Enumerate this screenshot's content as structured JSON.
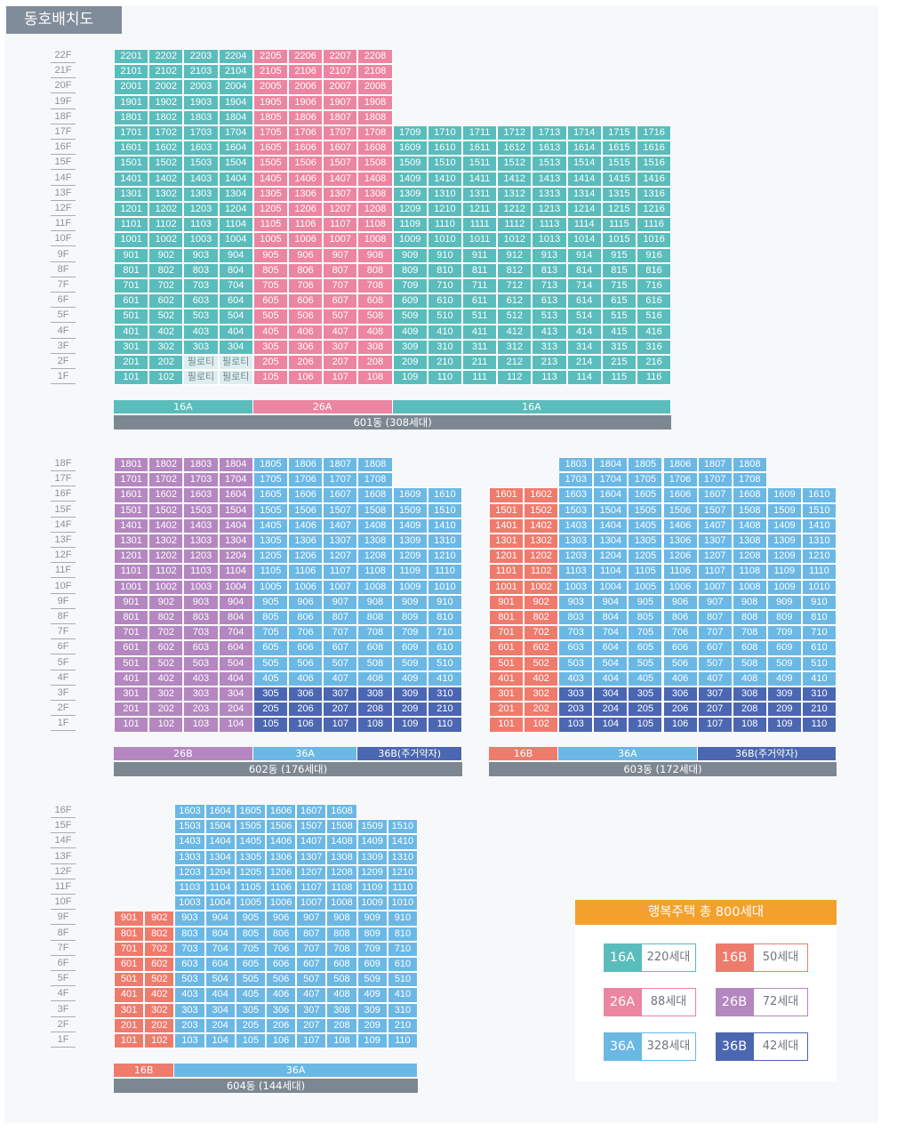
{
  "title": "동호배치도",
  "colors": {
    "16A": "#5bbcbc",
    "26A": "#ec85a1",
    "16B": "#ef7b6d",
    "26B": "#b487c0",
    "36A": "#6bb8e5",
    "36B": "#4b67b2"
  },
  "pilotis_label": "필로티",
  "pilotis_color": "#dceef0",
  "pilotis_text_color": "#7a8690",
  "buildings": [
    {
      "name": "601동 (308세대)",
      "floor_count": 22,
      "columns": [
        {
          "unit": "01",
          "max": 22,
          "type": "16A"
        },
        {
          "unit": "02",
          "max": 22,
          "type": "16A"
        },
        {
          "unit": "03",
          "max": 22,
          "type": "16A",
          "pilotis_floors": [
            1,
            2
          ]
        },
        {
          "unit": "04",
          "max": 22,
          "type": "16A",
          "pilotis_floors": [
            1,
            2
          ]
        },
        {
          "unit": "05",
          "max": 22,
          "type": "26A"
        },
        {
          "unit": "06",
          "max": 22,
          "type": "26A"
        },
        {
          "unit": "07",
          "max": 22,
          "type": "26A"
        },
        {
          "unit": "08",
          "max": 22,
          "type": "26A"
        },
        {
          "unit": "09",
          "max": 17,
          "type": "16A"
        },
        {
          "unit": "10",
          "max": 17,
          "type": "16A"
        },
        {
          "unit": "11",
          "max": 17,
          "type": "16A"
        },
        {
          "unit": "12",
          "max": 17,
          "type": "16A"
        },
        {
          "unit": "13",
          "max": 17,
          "type": "16A"
        },
        {
          "unit": "14",
          "max": 17,
          "type": "16A"
        },
        {
          "unit": "15",
          "max": 17,
          "type": "16A"
        },
        {
          "unit": "16",
          "max": 17,
          "type": "16A"
        }
      ],
      "bars": [
        {
          "label": "16A",
          "span": 4,
          "type": "16A"
        },
        {
          "label": "26A",
          "span": 4,
          "type": "26A"
        },
        {
          "label": "16A",
          "span": 8,
          "type": "16A"
        }
      ]
    },
    {
      "name": "602동 (176세대)",
      "floor_count": 18,
      "columns": [
        {
          "unit": "01",
          "max": 18,
          "type": "26B"
        },
        {
          "unit": "02",
          "max": 18,
          "type": "26B"
        },
        {
          "unit": "03",
          "max": 18,
          "type": "26B"
        },
        {
          "unit": "04",
          "max": 18,
          "type": "26B"
        },
        {
          "unit": "05",
          "max": 18,
          "type": "36A",
          "low_type": "36B"
        },
        {
          "unit": "06",
          "max": 18,
          "type": "36A",
          "low_type": "36B"
        },
        {
          "unit": "07",
          "max": 18,
          "type": "36A",
          "low_type": "36B"
        },
        {
          "unit": "08",
          "max": 18,
          "type": "36A",
          "low_type": "36B"
        },
        {
          "unit": "09",
          "max": 16,
          "type": "36A",
          "low_type": "36B"
        },
        {
          "unit": "10",
          "max": 16,
          "type": "36A",
          "low_type": "36B"
        }
      ],
      "bars": [
        {
          "label": "26B",
          "span": 4,
          "type": "26B"
        },
        {
          "label": "36A",
          "span": 3,
          "type": "36A"
        },
        {
          "label": "36B(주거약자)",
          "span": 3,
          "type": "36B"
        }
      ]
    },
    {
      "name": "603동 (172세대)",
      "floor_count": 18,
      "columns": [
        {
          "unit": "01",
          "max": 16,
          "type": "16B"
        },
        {
          "unit": "02",
          "max": 16,
          "type": "16B"
        },
        {
          "unit": "03",
          "max": 18,
          "type": "36A",
          "low_type": "36B"
        },
        {
          "unit": "04",
          "max": 18,
          "type": "36A",
          "low_type": "36B"
        },
        {
          "unit": "05",
          "max": 18,
          "type": "36A",
          "low_type": "36B"
        },
        {
          "unit": "06",
          "max": 18,
          "type": "36A",
          "low_type": "36B"
        },
        {
          "unit": "07",
          "max": 18,
          "type": "36A",
          "low_type": "36B"
        },
        {
          "unit": "08",
          "max": 18,
          "type": "36A",
          "low_type": "36B"
        },
        {
          "unit": "09",
          "max": 16,
          "type": "36A",
          "low_type": "36B"
        },
        {
          "unit": "10",
          "max": 16,
          "type": "36A",
          "low_type": "36B"
        }
      ],
      "bars": [
        {
          "label": "16B",
          "span": 2,
          "type": "16B"
        },
        {
          "label": "36A",
          "span": 4,
          "type": "36A"
        },
        {
          "label": "36B(주거약자)",
          "span": 4,
          "type": "36B"
        }
      ]
    },
    {
      "name": "604동 (144세대)",
      "floor_count": 16,
      "columns": [
        {
          "unit": "01",
          "max": 9,
          "type": "16B"
        },
        {
          "unit": "02",
          "max": 9,
          "type": "16B"
        },
        {
          "unit": "03",
          "max": 16,
          "type": "36A"
        },
        {
          "unit": "04",
          "max": 16,
          "type": "36A"
        },
        {
          "unit": "05",
          "max": 16,
          "type": "36A"
        },
        {
          "unit": "06",
          "max": 16,
          "type": "36A"
        },
        {
          "unit": "07",
          "max": 16,
          "type": "36A"
        },
        {
          "unit": "08",
          "max": 16,
          "type": "36A"
        },
        {
          "unit": "09",
          "max": 15,
          "type": "36A"
        },
        {
          "unit": "10",
          "max": 15,
          "type": "36A"
        }
      ],
      "bars": [
        {
          "label": "16B",
          "span": 2,
          "type": "16B"
        },
        {
          "label": "36A",
          "span": 8,
          "type": "36A"
        }
      ]
    }
  ],
  "legend": {
    "title": "행복주택 총 800세대",
    "items": [
      {
        "type": "16A",
        "count": "220세대"
      },
      {
        "type": "16B",
        "count": "50세대"
      },
      {
        "type": "26A",
        "count": "88세대"
      },
      {
        "type": "26B",
        "count": "72세대"
      },
      {
        "type": "36A",
        "count": "328세대"
      },
      {
        "type": "36B",
        "count": "42세대"
      }
    ]
  }
}
